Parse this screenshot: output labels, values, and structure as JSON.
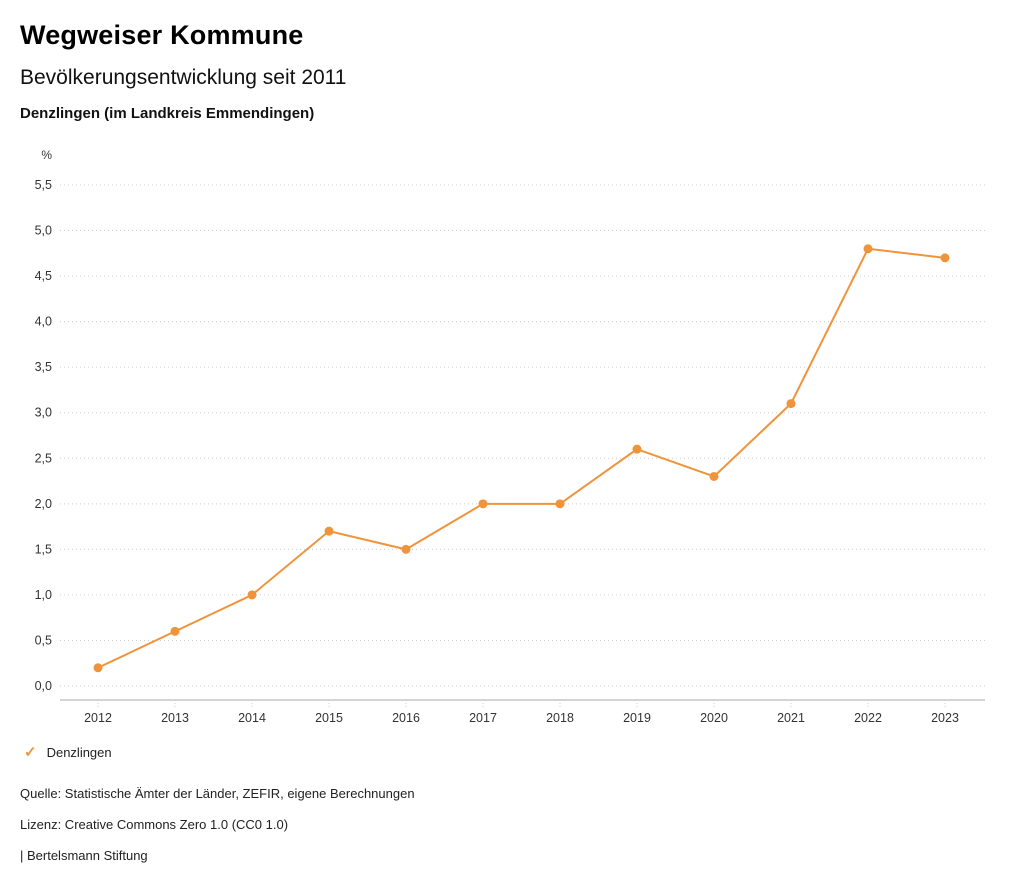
{
  "header": {
    "brand": "Wegweiser Kommune",
    "title": "Bevölkerungsentwicklung seit 2011",
    "subtitle": "Denzlingen (im Landkreis Emmendingen)"
  },
  "chart_data": {
    "type": "line",
    "title": "Bevölkerungsentwicklung seit 2011",
    "unit_label": "%",
    "categories": [
      "2012",
      "2013",
      "2014",
      "2015",
      "2016",
      "2017",
      "2018",
      "2019",
      "2020",
      "2021",
      "2022",
      "2023"
    ],
    "series": [
      {
        "name": "Denzlingen",
        "color": "#F0943C",
        "values": [
          0.2,
          0.6,
          1.0,
          1.7,
          1.5,
          2.0,
          2.0,
          2.6,
          2.3,
          3.1,
          4.8,
          4.7
        ]
      }
    ],
    "ylim": [
      0.0,
      5.5
    ],
    "ytick_step": 0.5,
    "decimal_separator": ",",
    "grid": "dotted-horizontal",
    "legend_position": "bottom-left"
  },
  "legend": {
    "items": [
      {
        "label": "Denzlingen",
        "color": "#F0943C",
        "marker": "✓"
      }
    ]
  },
  "footer": {
    "source": "Quelle: Statistische Ämter der Länder, ZEFIR, eigene Berechnungen",
    "license": "Lizenz: Creative Commons Zero 1.0 (CC0 1.0)",
    "attribution": "| Bertelsmann Stiftung"
  },
  "colors": {
    "series": "#F0943C",
    "grid": "#cccccc",
    "axis": "#aaaaaa",
    "tick_text": "#333333"
  }
}
